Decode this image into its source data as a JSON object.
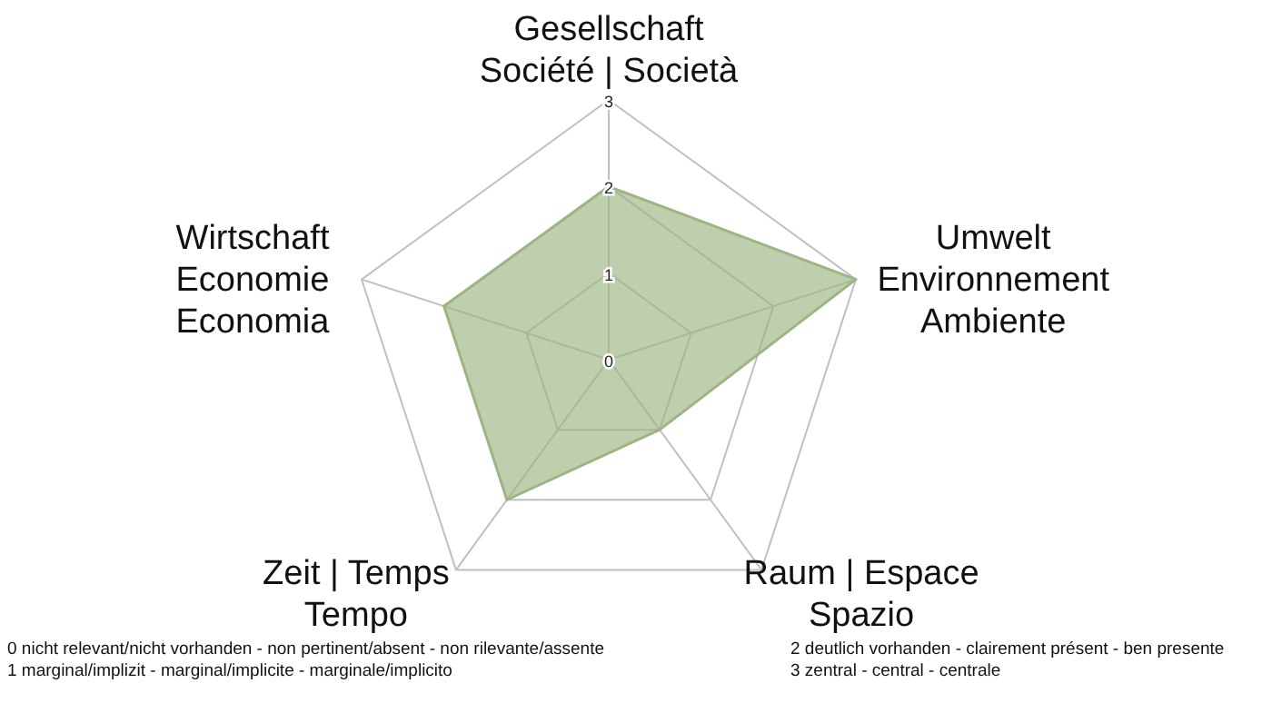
{
  "chart_data": {
    "type": "radar",
    "categories": [
      "Gesellschaft\nSociété | Società",
      "Umwelt\nEnvironnement\nAmbiente",
      "Raum | Espace\nSpazio",
      "Zeit | Temps\nTempo",
      "Wirtschaft\nEconomie\nEconomia"
    ],
    "series": [
      {
        "color": "#9cb582",
        "values": [
          2,
          3,
          1,
          2,
          2
        ]
      }
    ],
    "ylim": [
      0,
      3
    ],
    "yticks": [
      0,
      1,
      2,
      3
    ],
    "grid": true,
    "annotations": [
      "0 nicht relevant/nicht vorhanden - non pertinent/absent - non rilevante/assente",
      "1 marginal/implizit - marginal/implicite - marginale/implicito",
      "2 deutlich vorhanden - clairement présent - ben presente",
      "3 zentral - central - centrale"
    ]
  }
}
